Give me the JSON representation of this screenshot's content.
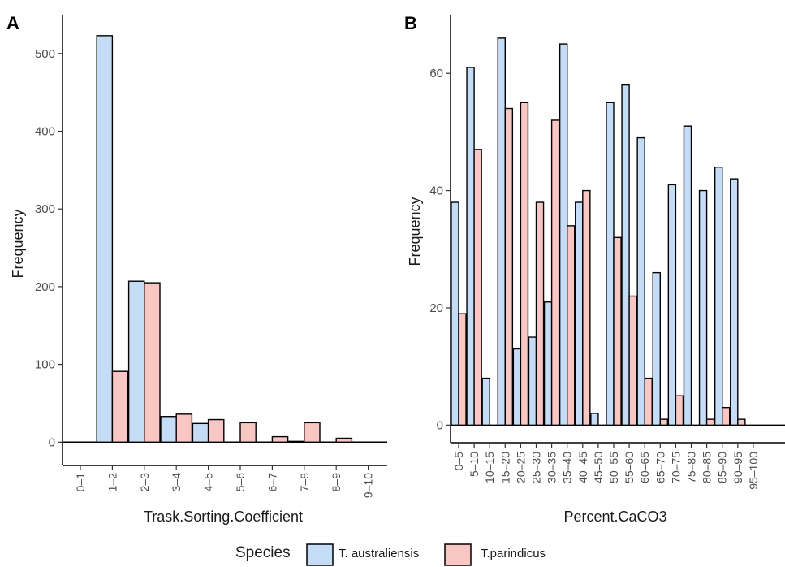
{
  "colors": {
    "series_a": "#c5dcf7",
    "series_b": "#f8c6c3",
    "stroke": "#000000",
    "tick_text": "#4d4d4d"
  },
  "legend": {
    "title": "Species",
    "items": [
      "T. australiensis",
      "T.parindicus"
    ]
  },
  "chart_data": [
    {
      "panel": "A",
      "type": "bar",
      "xlabel": "Trask.Sorting.Coefficient",
      "ylabel": "Frequency",
      "ylim": [
        -30,
        550
      ],
      "yticks": [
        0,
        100,
        200,
        300,
        400,
        500
      ],
      "categories": [
        "0–1",
        "1–2",
        "2–3",
        "3–4",
        "4–5",
        "5–6",
        "6–7",
        "7–8",
        "8–9",
        "9–10"
      ],
      "series": [
        {
          "name": "T. australiensis",
          "values": [
            0,
            523,
            207,
            33,
            24,
            0,
            0,
            1,
            0,
            0
          ]
        },
        {
          "name": "T.parindicus",
          "values": [
            0,
            91,
            205,
            36,
            29,
            25,
            7,
            25,
            5,
            0
          ]
        }
      ],
      "grid": false
    },
    {
      "panel": "B",
      "type": "bar",
      "xlabel": "Percent.CaCO3",
      "ylabel": "Frequency",
      "ylim": [
        -3,
        70
      ],
      "yticks": [
        0,
        20,
        40,
        60
      ],
      "categories": [
        "0–5",
        "5–10",
        "10–15",
        "15–20",
        "20–25",
        "25–30",
        "30–35",
        "35–40",
        "40–45",
        "45–50",
        "50–55",
        "55–60",
        "60–65",
        "65–70",
        "70–75",
        "75–80",
        "80–85",
        "85–90",
        "90–95",
        "95–100"
      ],
      "series": [
        {
          "name": "T. australiensis",
          "values": [
            38,
            61,
            8,
            66,
            13,
            15,
            21,
            65,
            38,
            2,
            55,
            58,
            49,
            26,
            41,
            51,
            40,
            44,
            42,
            0
          ]
        },
        {
          "name": "T.parindicus",
          "values": [
            19,
            47,
            0,
            54,
            55,
            38,
            52,
            34,
            40,
            0,
            32,
            22,
            8,
            1,
            5,
            0,
            1,
            3,
            1,
            0
          ]
        }
      ],
      "grid": false
    }
  ]
}
